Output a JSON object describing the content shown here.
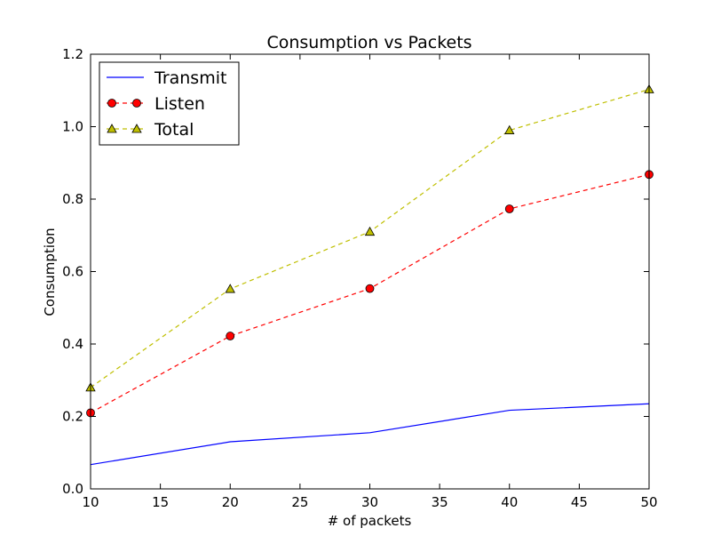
{
  "chart_data": {
    "type": "line",
    "title": "Consumption vs Packets",
    "xlabel": "# of packets",
    "ylabel": "Consumption",
    "xlim": [
      10,
      50
    ],
    "ylim": [
      0.0,
      1.2
    ],
    "xticks": [
      "10",
      "15",
      "20",
      "25",
      "30",
      "35",
      "40",
      "45",
      "50"
    ],
    "yticks": [
      "0.0",
      "0.2",
      "0.4",
      "0.6",
      "0.8",
      "1.0",
      "1.2"
    ],
    "grid": false,
    "legend_position": "top-left",
    "x": [
      10,
      20,
      30,
      40,
      50
    ],
    "series": [
      {
        "name": "Transmit",
        "values": [
          0.067,
          0.13,
          0.155,
          0.217,
          0.235
        ],
        "color": "#0000ff",
        "line": "solid",
        "marker": "none"
      },
      {
        "name": "Listen",
        "values": [
          0.21,
          0.422,
          0.553,
          0.773,
          0.868
        ],
        "color": "#ff0000",
        "line": "dashed",
        "marker": "circle"
      },
      {
        "name": "Total",
        "values": [
          0.28,
          0.552,
          0.71,
          0.99,
          1.103
        ],
        "color": "#bfbf00",
        "line": "dashed",
        "marker": "triangle"
      }
    ]
  }
}
